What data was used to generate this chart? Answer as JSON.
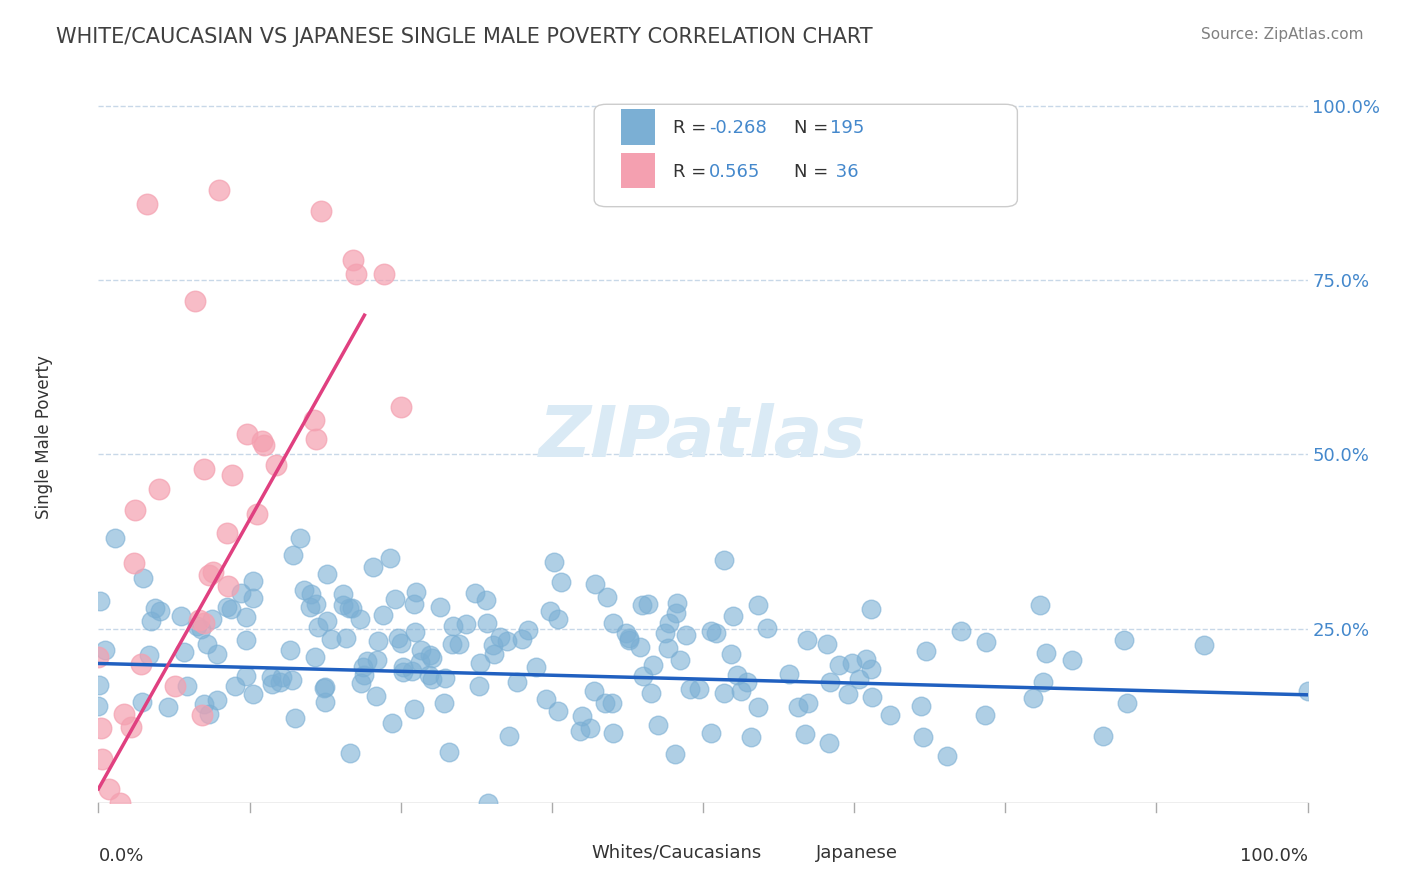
{
  "title": "WHITE/CAUCASIAN VS JAPANESE SINGLE MALE POVERTY CORRELATION CHART",
  "source_text": "Source: ZipAtlas.com",
  "ylabel": "Single Male Poverty",
  "blue_R": -0.268,
  "blue_N": 195,
  "pink_R": 0.565,
  "pink_N": 36,
  "blue_color": "#7bafd4",
  "pink_color": "#f4a0b0",
  "blue_line_color": "#2060c0",
  "pink_line_color": "#e04080",
  "watermark_color": "#daeaf5",
  "background_color": "#ffffff",
  "grid_color": "#c8d8e8",
  "title_color": "#404040",
  "source_color": "#808080",
  "value_color": "#4488cc"
}
